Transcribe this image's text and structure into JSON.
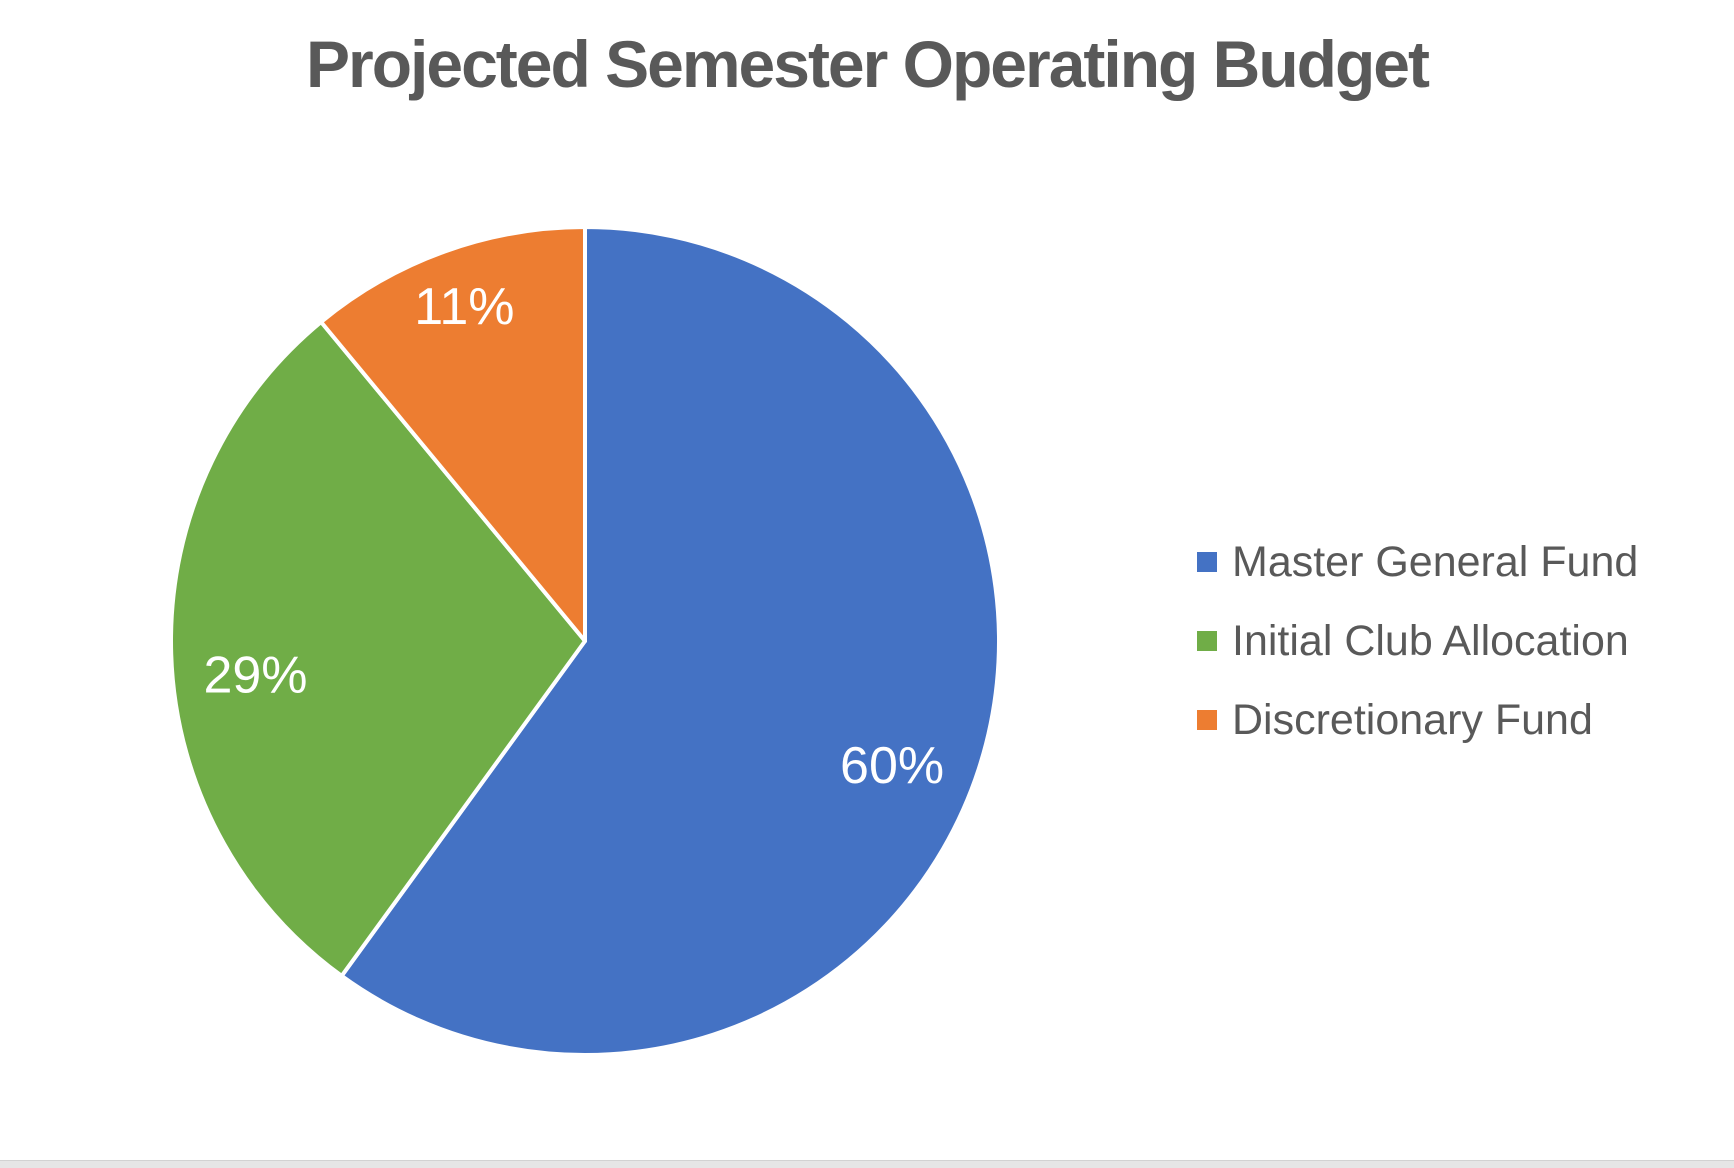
{
  "title": "Projected Semester Operating Budget",
  "chart_data": {
    "type": "pie",
    "title": "Projected Semester Operating Budget",
    "slices": [
      {
        "label": "Master General Fund",
        "value": 60,
        "pct_label": "60%",
        "color": "#4472C4"
      },
      {
        "label": "Initial Club Allocation",
        "value": 29,
        "pct_label": "29%",
        "color": "#70AD47"
      },
      {
        "label": "Discretionary Fund",
        "value": 11,
        "pct_label": "11%",
        "color": "#ED7D31"
      }
    ],
    "start_angle_deg": 0,
    "direction": "clockwise",
    "legend_position": "right",
    "data_labels": "percent-inside",
    "data_label_color": "#FFFFFF",
    "separator_color": "#FFFFFF",
    "title_color": "#595959",
    "legend_text_color": "#595959"
  }
}
